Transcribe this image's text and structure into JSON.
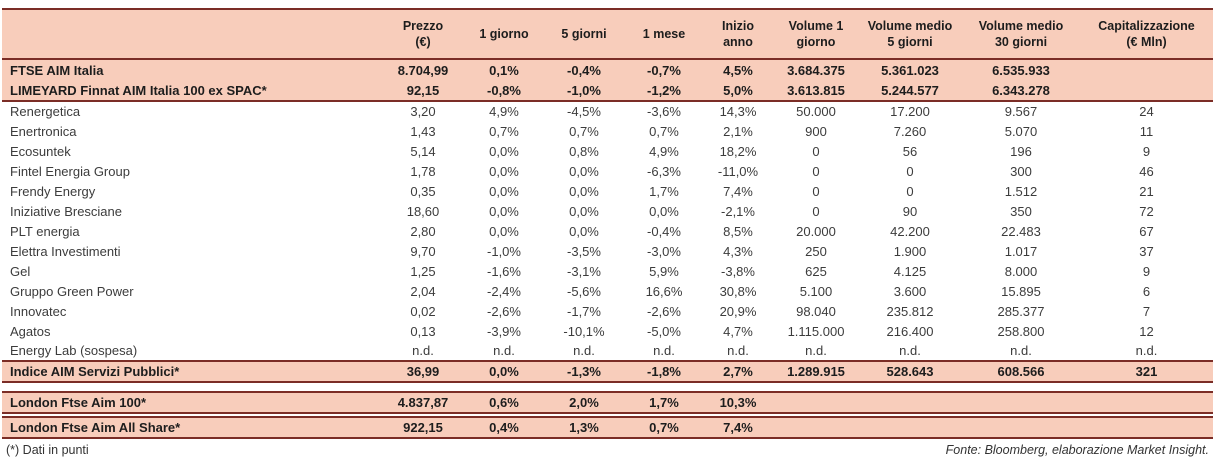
{
  "colors": {
    "pink": "#f8cdbb",
    "border": "#7b2d26",
    "text": "#3c3c3c",
    "text-strong": "#1d1d1d"
  },
  "footer": {
    "footnote": "(*) Dati in punti",
    "source": "Fonte: Bloomberg, elaborazione Market Insight."
  },
  "table": {
    "headers": [
      "",
      "Prezzo\n(€)",
      "1 giorno",
      "5 giorni",
      "1 mese",
      "Inizio anno",
      "Volume 1\ngiorno",
      "Volume medio\n5 giorni",
      "Volume medio\n30 giorni",
      "Capitalizzazione\n(€ Mln)"
    ],
    "rows": [
      {
        "style": "index",
        "cells": [
          "FTSE AIM Italia",
          "8.704,99",
          "0,1%",
          "-0,4%",
          "-0,7%",
          "4,5%",
          "3.684.375",
          "5.361.023",
          "6.535.933",
          ""
        ]
      },
      {
        "style": "index bb",
        "cells": [
          "LIMEYARD Finnat AIM Italia 100 ex SPAC*",
          "92,15",
          "-0,8%",
          "-1,0%",
          "-1,2%",
          "5,0%",
          "3.613.815",
          "5.244.577",
          "6.343.278",
          ""
        ]
      },
      {
        "style": "stock",
        "cells": [
          "Renergetica",
          "3,20",
          "4,9%",
          "-4,5%",
          "-3,6%",
          "14,3%",
          "50.000",
          "17.200",
          "9.567",
          "24"
        ]
      },
      {
        "style": "stock",
        "cells": [
          "Enertronica",
          "1,43",
          "0,7%",
          "0,7%",
          "0,7%",
          "2,1%",
          "900",
          "7.260",
          "5.070",
          "11"
        ]
      },
      {
        "style": "stock",
        "cells": [
          "Ecosuntek",
          "5,14",
          "0,0%",
          "0,8%",
          "4,9%",
          "18,2%",
          "0",
          "56",
          "196",
          "9"
        ]
      },
      {
        "style": "stock",
        "cells": [
          "Fintel Energia Group",
          "1,78",
          "0,0%",
          "0,0%",
          "-6,3%",
          "-11,0%",
          "0",
          "0",
          "300",
          "46"
        ]
      },
      {
        "style": "stock",
        "cells": [
          "Frendy Energy",
          "0,35",
          "0,0%",
          "0,0%",
          "1,7%",
          "7,4%",
          "0",
          "0",
          "1.512",
          "21"
        ]
      },
      {
        "style": "stock",
        "cells": [
          "Iniziative Bresciane",
          "18,60",
          "0,0%",
          "0,0%",
          "0,0%",
          "-2,1%",
          "0",
          "90",
          "350",
          "72"
        ]
      },
      {
        "style": "stock",
        "cells": [
          "PLT energia",
          "2,80",
          "0,0%",
          "0,0%",
          "-0,4%",
          "8,5%",
          "20.000",
          "42.200",
          "22.483",
          "67"
        ]
      },
      {
        "style": "stock",
        "cells": [
          "Elettra Investimenti",
          "9,70",
          "-1,0%",
          "-3,5%",
          "-3,0%",
          "4,3%",
          "250",
          "1.900",
          "1.017",
          "37"
        ]
      },
      {
        "style": "stock",
        "cells": [
          "Gel",
          "1,25",
          "-1,6%",
          "-3,1%",
          "5,9%",
          "-3,8%",
          "625",
          "4.125",
          "8.000",
          "9"
        ]
      },
      {
        "style": "stock",
        "cells": [
          "Gruppo Green Power",
          "2,04",
          "-2,4%",
          "-5,6%",
          "16,6%",
          "30,8%",
          "5.100",
          "3.600",
          "15.895",
          "6"
        ]
      },
      {
        "style": "stock",
        "cells": [
          "Innovatec",
          "0,02",
          "-2,6%",
          "-1,7%",
          "-2,6%",
          "20,9%",
          "98.040",
          "235.812",
          "285.377",
          "7"
        ]
      },
      {
        "style": "stock",
        "cells": [
          "Agatos",
          "0,13",
          "-3,9%",
          "-10,1%",
          "-5,0%",
          "4,7%",
          "1.115.000",
          "216.400",
          "258.800",
          "12"
        ]
      },
      {
        "style": "stock",
        "cells": [
          "Energy Lab (sospesa)",
          "n.d.",
          "n.d.",
          "n.d.",
          "n.d.",
          "n.d.",
          "n.d.",
          "n.d.",
          "n.d.",
          "n.d."
        ]
      },
      {
        "style": "index bt bb",
        "cells": [
          "Indice AIM Servizi Pubblici*",
          "36,99",
          "0,0%",
          "-1,3%",
          "-1,8%",
          "2,7%",
          "1.289.915",
          "528.643",
          "608.566",
          "321"
        ]
      },
      {
        "style": "spacer"
      },
      {
        "style": "index bt bb",
        "cells": [
          "London Ftse Aim 100*",
          "4.837,87",
          "0,6%",
          "2,0%",
          "1,7%",
          "10,3%",
          "",
          "",
          "",
          ""
        ]
      },
      {
        "style": "spacer sp-sm"
      },
      {
        "style": "index bt bb",
        "cells": [
          "London Ftse Aim All Share*",
          "922,15",
          "0,4%",
          "1,3%",
          "0,7%",
          "7,4%",
          "",
          "",
          "",
          ""
        ]
      }
    ]
  }
}
